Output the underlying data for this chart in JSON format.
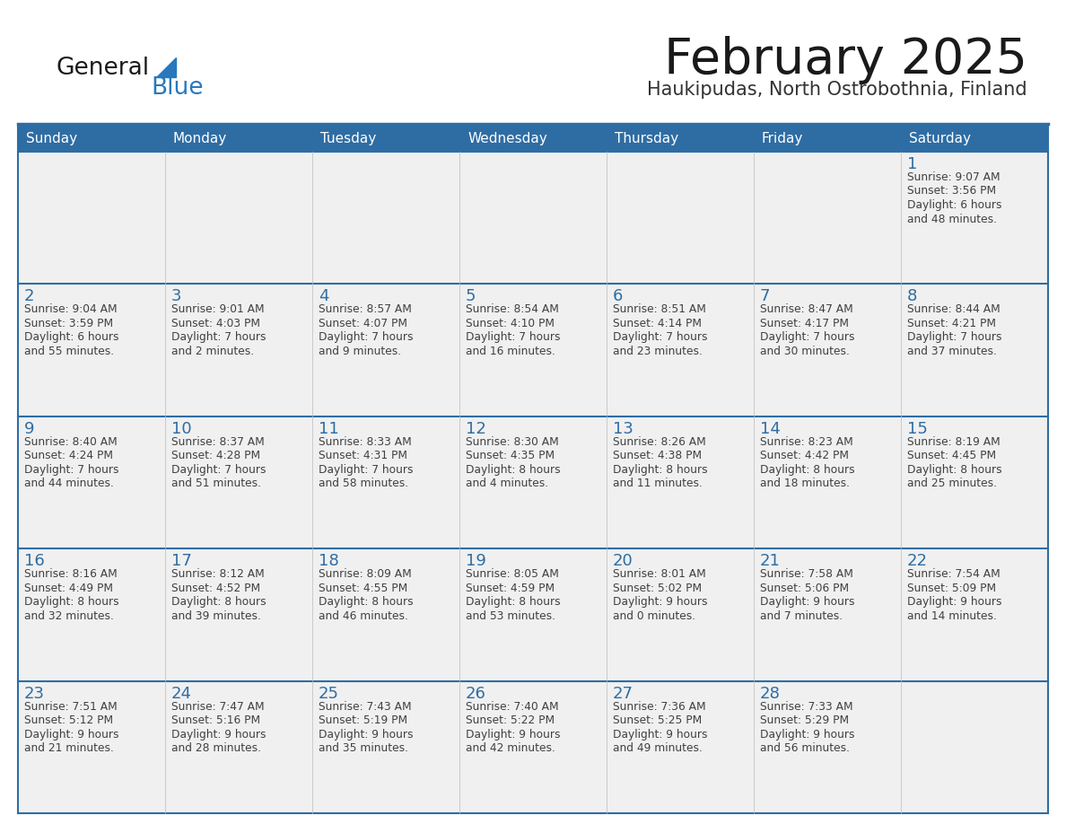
{
  "title": "February 2025",
  "subtitle": "Haukipudas, North Ostrobothnia, Finland",
  "days_of_week": [
    "Sunday",
    "Monday",
    "Tuesday",
    "Wednesday",
    "Thursday",
    "Friday",
    "Saturday"
  ],
  "header_bg": "#2E6DA4",
  "header_text_color": "#FFFFFF",
  "cell_bg": "#F0F0F0",
  "cell_bg_white": "#FFFFFF",
  "cell_border_color": "#2E6DA4",
  "title_color": "#1a1a1a",
  "subtitle_color": "#333333",
  "day_number_color": "#2E6DA4",
  "cell_text_color": "#404040",
  "logo_general_color": "#1a1a1a",
  "logo_blue_color": "#2878BE",
  "weeks": [
    [
      {
        "day": null,
        "info": null
      },
      {
        "day": null,
        "info": null
      },
      {
        "day": null,
        "info": null
      },
      {
        "day": null,
        "info": null
      },
      {
        "day": null,
        "info": null
      },
      {
        "day": null,
        "info": null
      },
      {
        "day": 1,
        "info": "Sunrise: 9:07 AM\nSunset: 3:56 PM\nDaylight: 6 hours\nand 48 minutes."
      }
    ],
    [
      {
        "day": 2,
        "info": "Sunrise: 9:04 AM\nSunset: 3:59 PM\nDaylight: 6 hours\nand 55 minutes."
      },
      {
        "day": 3,
        "info": "Sunrise: 9:01 AM\nSunset: 4:03 PM\nDaylight: 7 hours\nand 2 minutes."
      },
      {
        "day": 4,
        "info": "Sunrise: 8:57 AM\nSunset: 4:07 PM\nDaylight: 7 hours\nand 9 minutes."
      },
      {
        "day": 5,
        "info": "Sunrise: 8:54 AM\nSunset: 4:10 PM\nDaylight: 7 hours\nand 16 minutes."
      },
      {
        "day": 6,
        "info": "Sunrise: 8:51 AM\nSunset: 4:14 PM\nDaylight: 7 hours\nand 23 minutes."
      },
      {
        "day": 7,
        "info": "Sunrise: 8:47 AM\nSunset: 4:17 PM\nDaylight: 7 hours\nand 30 minutes."
      },
      {
        "day": 8,
        "info": "Sunrise: 8:44 AM\nSunset: 4:21 PM\nDaylight: 7 hours\nand 37 minutes."
      }
    ],
    [
      {
        "day": 9,
        "info": "Sunrise: 8:40 AM\nSunset: 4:24 PM\nDaylight: 7 hours\nand 44 minutes."
      },
      {
        "day": 10,
        "info": "Sunrise: 8:37 AM\nSunset: 4:28 PM\nDaylight: 7 hours\nand 51 minutes."
      },
      {
        "day": 11,
        "info": "Sunrise: 8:33 AM\nSunset: 4:31 PM\nDaylight: 7 hours\nand 58 minutes."
      },
      {
        "day": 12,
        "info": "Sunrise: 8:30 AM\nSunset: 4:35 PM\nDaylight: 8 hours\nand 4 minutes."
      },
      {
        "day": 13,
        "info": "Sunrise: 8:26 AM\nSunset: 4:38 PM\nDaylight: 8 hours\nand 11 minutes."
      },
      {
        "day": 14,
        "info": "Sunrise: 8:23 AM\nSunset: 4:42 PM\nDaylight: 8 hours\nand 18 minutes."
      },
      {
        "day": 15,
        "info": "Sunrise: 8:19 AM\nSunset: 4:45 PM\nDaylight: 8 hours\nand 25 minutes."
      }
    ],
    [
      {
        "day": 16,
        "info": "Sunrise: 8:16 AM\nSunset: 4:49 PM\nDaylight: 8 hours\nand 32 minutes."
      },
      {
        "day": 17,
        "info": "Sunrise: 8:12 AM\nSunset: 4:52 PM\nDaylight: 8 hours\nand 39 minutes."
      },
      {
        "day": 18,
        "info": "Sunrise: 8:09 AM\nSunset: 4:55 PM\nDaylight: 8 hours\nand 46 minutes."
      },
      {
        "day": 19,
        "info": "Sunrise: 8:05 AM\nSunset: 4:59 PM\nDaylight: 8 hours\nand 53 minutes."
      },
      {
        "day": 20,
        "info": "Sunrise: 8:01 AM\nSunset: 5:02 PM\nDaylight: 9 hours\nand 0 minutes."
      },
      {
        "day": 21,
        "info": "Sunrise: 7:58 AM\nSunset: 5:06 PM\nDaylight: 9 hours\nand 7 minutes."
      },
      {
        "day": 22,
        "info": "Sunrise: 7:54 AM\nSunset: 5:09 PM\nDaylight: 9 hours\nand 14 minutes."
      }
    ],
    [
      {
        "day": 23,
        "info": "Sunrise: 7:51 AM\nSunset: 5:12 PM\nDaylight: 9 hours\nand 21 minutes."
      },
      {
        "day": 24,
        "info": "Sunrise: 7:47 AM\nSunset: 5:16 PM\nDaylight: 9 hours\nand 28 minutes."
      },
      {
        "day": 25,
        "info": "Sunrise: 7:43 AM\nSunset: 5:19 PM\nDaylight: 9 hours\nand 35 minutes."
      },
      {
        "day": 26,
        "info": "Sunrise: 7:40 AM\nSunset: 5:22 PM\nDaylight: 9 hours\nand 42 minutes."
      },
      {
        "day": 27,
        "info": "Sunrise: 7:36 AM\nSunset: 5:25 PM\nDaylight: 9 hours\nand 49 minutes."
      },
      {
        "day": 28,
        "info": "Sunrise: 7:33 AM\nSunset: 5:29 PM\nDaylight: 9 hours\nand 56 minutes."
      },
      {
        "day": null,
        "info": null
      }
    ]
  ]
}
